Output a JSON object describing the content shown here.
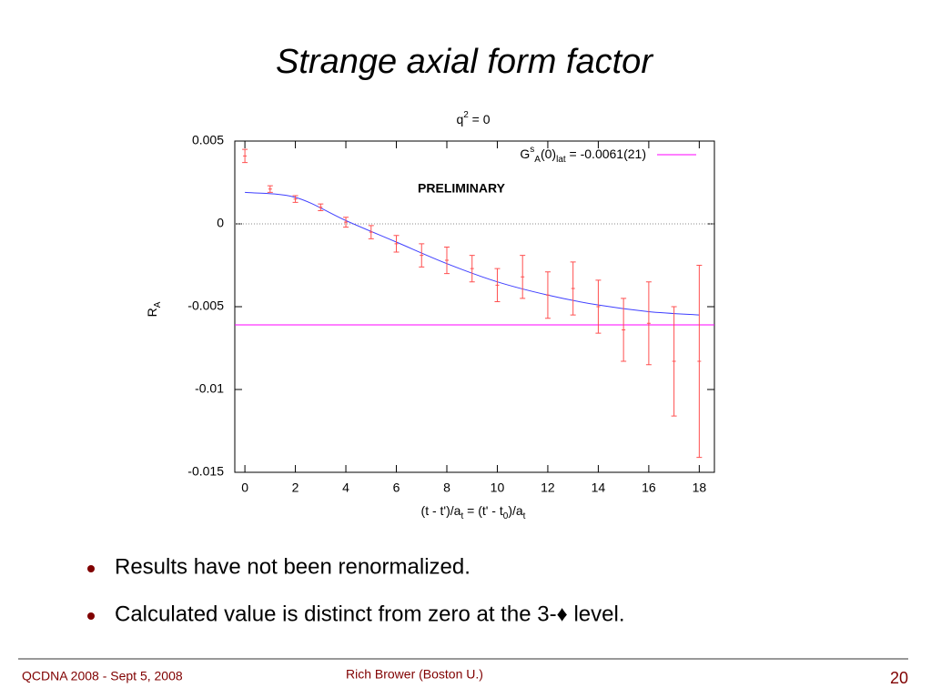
{
  "slide": {
    "title": "Strange axial form factor",
    "bullets": [
      "Results have not been renormalized.",
      "Calculated value is distinct from zero at the 3-♦ level."
    ],
    "footer": {
      "left": "QCDNA 2008 -  Sept 5, 2008",
      "center": "Rich Brower (Boston U.)",
      "page": "20"
    }
  },
  "chart_data": {
    "type": "errorbar",
    "title": [
      {
        "text": "q"
      },
      {
        "text": "2",
        "script": "sup"
      },
      {
        "text": " = 0"
      }
    ],
    "x_label": [
      {
        "text": "(t - t')/a"
      },
      {
        "text": "t",
        "script": "sub"
      },
      {
        "text": " = (t' - t"
      },
      {
        "text": "0",
        "script": "sub"
      },
      {
        "text": ")/a"
      },
      {
        "text": "t",
        "script": "sub"
      }
    ],
    "y_label": [
      {
        "text": "R"
      },
      {
        "text": "A",
        "script": "sub"
      }
    ],
    "annotation": "PRELIMINARY",
    "x": [
      0,
      1,
      2,
      3,
      4,
      5,
      6,
      7,
      8,
      9,
      10,
      11,
      12,
      13,
      14,
      15,
      16,
      17,
      18
    ],
    "values": [
      0.0041,
      0.0021,
      0.0015,
      0.001,
      0.0001,
      -0.0005,
      -0.0012,
      -0.0019,
      -0.0022,
      -0.0027,
      -0.0037,
      -0.0032,
      -0.0043,
      -0.0039,
      -0.005,
      -0.0064,
      -0.006,
      -0.0083,
      -0.0083
    ],
    "errors": [
      0.0004,
      0.0002,
      0.0002,
      0.0002,
      0.0003,
      0.0004,
      0.0005,
      0.0007,
      0.0008,
      0.0008,
      0.001,
      0.0013,
      0.0014,
      0.0016,
      0.0016,
      0.0019,
      0.0025,
      0.0033,
      0.0058
    ],
    "color": "#ff5050",
    "fit": {
      "x": [
        0,
        2,
        4,
        6,
        8,
        10,
        12,
        14,
        16,
        18
      ],
      "values": [
        0.0019,
        0.0016,
        0.0002,
        -0.0011,
        -0.0024,
        -0.0035,
        -0.0043,
        -0.0049,
        -0.0053,
        -0.0055
      ],
      "color": "#3f3fff"
    },
    "hline": {
      "value": -0.0061,
      "color": "#ff00ff",
      "label": [
        {
          "text": "G"
        },
        {
          "text": "s",
          "script": "sup"
        },
        {
          "text": "A",
          "script": "sub"
        },
        {
          "text": "(0)"
        },
        {
          "text": "lat",
          "script": "sub"
        },
        {
          "text": " = -0.0061(21)"
        }
      ]
    },
    "zero_line": true,
    "xlim": [
      -0.4,
      18.6
    ],
    "ylim": [
      -0.015,
      0.005
    ],
    "xticks": [
      0,
      2,
      4,
      6,
      8,
      10,
      12,
      14,
      16,
      18
    ],
    "yticks": [
      0.005,
      0,
      -0.005,
      -0.01,
      -0.015
    ]
  }
}
